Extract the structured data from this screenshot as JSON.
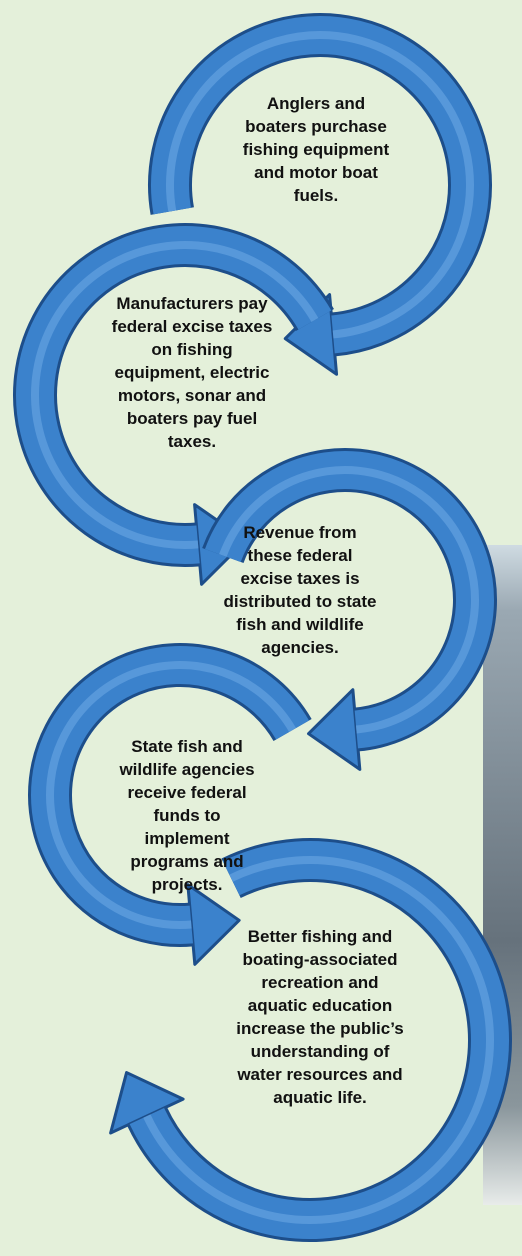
{
  "steps": [
    {
      "lines": [
        "Anglers and",
        "boaters purchase",
        "fishing equipment",
        "and motor boat",
        "fuels."
      ]
    },
    {
      "lines": [
        "Manufacturers pay",
        "federal excise taxes",
        "on fishing",
        "equipment, electric",
        "motors, sonar and",
        "boaters pay fuel",
        "taxes."
      ]
    },
    {
      "lines": [
        "Revenue from",
        "these federal",
        "excise taxes is",
        "distributed to state",
        "fish and wildlife",
        "agencies."
      ]
    },
    {
      "lines": [
        "State fish and",
        "wildlife agencies",
        "receive federal",
        "funds to",
        "implement",
        "programs and",
        "projects."
      ]
    },
    {
      "lines": [
        "Better fishing and",
        "boating-associated",
        "recreation and",
        "aquatic education",
        "increase the public’s",
        "understanding of",
        "water resources and",
        "aquatic life."
      ]
    }
  ]
}
